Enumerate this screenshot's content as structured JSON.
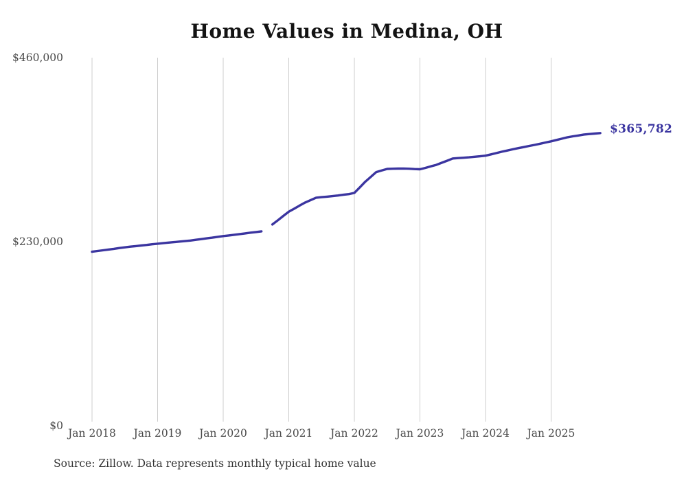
{
  "chart": {
    "title": "Home Values in Medina, OH",
    "end_label": "$365,782",
    "source": "Source: Zillow. Data represents monthly typical home value",
    "colors": {
      "line": "#3b35a0",
      "grid": "#cccccc",
      "tick_text": "#4a4a4a",
      "title_text": "#131313",
      "source_text": "#333333"
    }
  },
  "chart_data": {
    "type": "line",
    "title": "Home Values in Medina, OH",
    "xlabel": "",
    "ylabel": "",
    "ylim": [
      0,
      460000
    ],
    "grid": "vertical-only",
    "legend_position": "none",
    "y_ticks": [
      {
        "value": 460000,
        "label": "$460,000"
      },
      {
        "value": 230000,
        "label": "$230,000"
      },
      {
        "value": 0,
        "label": "$0"
      }
    ],
    "x_ticks": [
      {
        "month": "2018-01",
        "label": "Jan 2018"
      },
      {
        "month": "2019-01",
        "label": "Jan 2019"
      },
      {
        "month": "2020-01",
        "label": "Jan 2020"
      },
      {
        "month": "2021-01",
        "label": "Jan 2021"
      },
      {
        "month": "2022-01",
        "label": "Jan 2022"
      },
      {
        "month": "2023-01",
        "label": "Jan 2023"
      },
      {
        "month": "2024-01",
        "label": "Jan 2024"
      },
      {
        "month": "2025-01",
        "label": "Jan 2025"
      }
    ],
    "annotation": {
      "text": "$365,782",
      "month": "2025-10",
      "value": 365782
    },
    "note": "Line has a data gap at 2020-09 (null value)",
    "series": [
      {
        "name": "Monthly typical home value",
        "points": [
          [
            "2018-01",
            217500
          ],
          [
            "2018-02",
            218400
          ],
          [
            "2018-03",
            219300
          ],
          [
            "2018-04",
            220200
          ],
          [
            "2018-05",
            221100
          ],
          [
            "2018-06",
            222100
          ],
          [
            "2018-07",
            223000
          ],
          [
            "2018-08",
            223800
          ],
          [
            "2018-09",
            224500
          ],
          [
            "2018-10",
            225300
          ],
          [
            "2018-11",
            226000
          ],
          [
            "2018-12",
            226800
          ],
          [
            "2019-01",
            227500
          ],
          [
            "2019-02",
            228200
          ],
          [
            "2019-03",
            228900
          ],
          [
            "2019-04",
            229500
          ],
          [
            "2019-05",
            230200
          ],
          [
            "2019-06",
            230800
          ],
          [
            "2019-07",
            231500
          ],
          [
            "2019-08",
            232400
          ],
          [
            "2019-09",
            233300
          ],
          [
            "2019-10",
            234200
          ],
          [
            "2019-11",
            235100
          ],
          [
            "2019-12",
            236100
          ],
          [
            "2020-01",
            237000
          ],
          [
            "2020-02",
            237800
          ],
          [
            "2020-03",
            238700
          ],
          [
            "2020-04",
            239500
          ],
          [
            "2020-05",
            240400
          ],
          [
            "2020-06",
            241300
          ],
          [
            "2020-07",
            242100
          ],
          [
            "2020-08",
            243000
          ],
          [
            "2020-09",
            null
          ],
          [
            "2020-10",
            251500
          ],
          [
            "2020-11",
            256800
          ],
          [
            "2020-12",
            262200
          ],
          [
            "2021-01",
            267500
          ],
          [
            "2021-02",
            271300
          ],
          [
            "2021-03",
            275200
          ],
          [
            "2021-04",
            279000
          ],
          [
            "2021-05",
            282000
          ],
          [
            "2021-06",
            285000
          ],
          [
            "2021-07",
            285700
          ],
          [
            "2021-08",
            286300
          ],
          [
            "2021-09",
            287000
          ],
          [
            "2021-10",
            287800
          ],
          [
            "2021-11",
            288700
          ],
          [
            "2021-12",
            289500
          ],
          [
            "2022-01",
            291000
          ],
          [
            "2022-02",
            298000
          ],
          [
            "2022-03",
            305000
          ],
          [
            "2022-04",
            311000
          ],
          [
            "2022-05",
            317000
          ],
          [
            "2022-06",
            319000
          ],
          [
            "2022-07",
            321000
          ],
          [
            "2022-08",
            321200
          ],
          [
            "2022-09",
            321400
          ],
          [
            "2022-10",
            321500
          ],
          [
            "2022-11",
            321200
          ],
          [
            "2022-12",
            320800
          ],
          [
            "2023-01",
            320500
          ],
          [
            "2023-02",
            322300
          ],
          [
            "2023-03",
            324200
          ],
          [
            "2023-04",
            326000
          ],
          [
            "2023-05",
            328700
          ],
          [
            "2023-06",
            331300
          ],
          [
            "2023-07",
            334000
          ],
          [
            "2023-08",
            334500
          ],
          [
            "2023-09",
            335000
          ],
          [
            "2023-10",
            335500
          ],
          [
            "2023-11",
            336200
          ],
          [
            "2023-12",
            336800
          ],
          [
            "2024-01",
            337500
          ],
          [
            "2024-02",
            339200
          ],
          [
            "2024-03",
            340800
          ],
          [
            "2024-04",
            342500
          ],
          [
            "2024-05",
            344000
          ],
          [
            "2024-06",
            345500
          ],
          [
            "2024-07",
            347000
          ],
          [
            "2024-08",
            348300
          ],
          [
            "2024-09",
            349700
          ],
          [
            "2024-10",
            351000
          ],
          [
            "2024-11",
            352500
          ],
          [
            "2024-12",
            354000
          ],
          [
            "2025-01",
            355500
          ],
          [
            "2025-02",
            357200
          ],
          [
            "2025-03",
            358800
          ],
          [
            "2025-04",
            360500
          ],
          [
            "2025-05",
            361700
          ],
          [
            "2025-06",
            362800
          ],
          [
            "2025-07",
            364000
          ],
          [
            "2025-08",
            364600
          ],
          [
            "2025-09",
            365200
          ],
          [
            "2025-10",
            365782
          ]
        ]
      }
    ]
  }
}
